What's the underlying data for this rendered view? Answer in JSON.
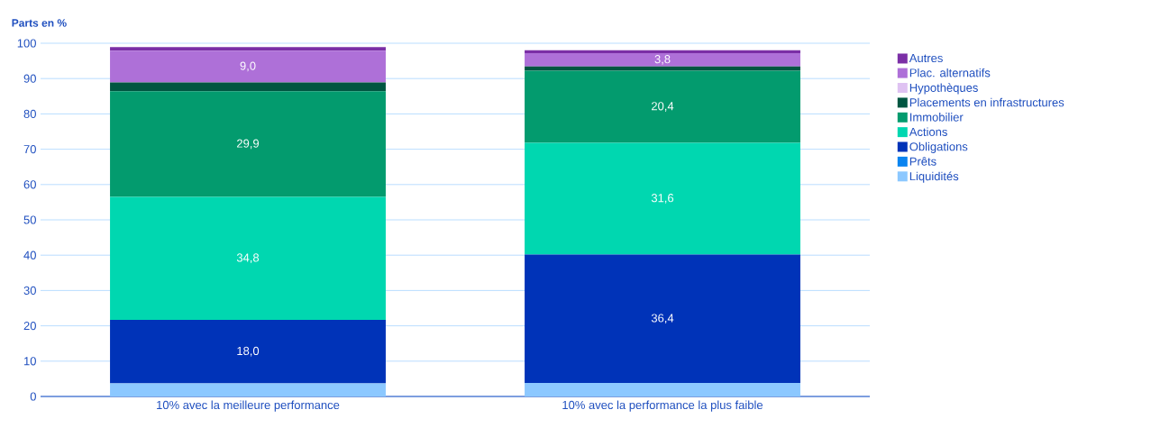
{
  "chart_data": {
    "type": "bar",
    "stacked": true,
    "ylabel": "Parts en %",
    "categories": [
      "10% avec la meilleure performance",
      "10% avec la performance la plus faible"
    ],
    "ylim": [
      0,
      100
    ],
    "yticks": [
      0,
      10,
      20,
      30,
      40,
      50,
      60,
      70,
      80,
      90,
      100
    ],
    "grid": "y",
    "legend": "right",
    "series": [
      {
        "name": "Liquidités",
        "color": "#8cc8ff",
        "values": [
          3.7,
          3.8
        ]
      },
      {
        "name": "Prêts",
        "color": "#0a84f0",
        "values": [
          0,
          0
        ]
      },
      {
        "name": "Obligations",
        "color": "#0033b8",
        "values": [
          18.0,
          36.4
        ],
        "value_labels": [
          "18,0",
          "36,4"
        ]
      },
      {
        "name": "Actions",
        "color": "#00d7b0",
        "values": [
          34.8,
          31.6
        ],
        "value_labels": [
          "34,8",
          "31,6"
        ]
      },
      {
        "name": "Immobilier",
        "color": "#039b6e",
        "values": [
          29.9,
          20.4
        ],
        "value_labels": [
          "29,9",
          "20,4"
        ]
      },
      {
        "name": "Placements en infrastructures",
        "color": "#005641",
        "values": [
          2.5,
          1.2
        ]
      },
      {
        "name": "Hypothèques",
        "color": "#dfc2f2",
        "values": [
          0,
          0
        ]
      },
      {
        "name": "Plac. alternatifs",
        "color": "#ae70d8",
        "values": [
          9.0,
          3.8
        ],
        "value_labels": [
          "9,0",
          "3,8"
        ]
      },
      {
        "name": "Autres",
        "color": "#7b2fa6",
        "values": [
          1.0,
          0.8
        ]
      }
    ]
  }
}
